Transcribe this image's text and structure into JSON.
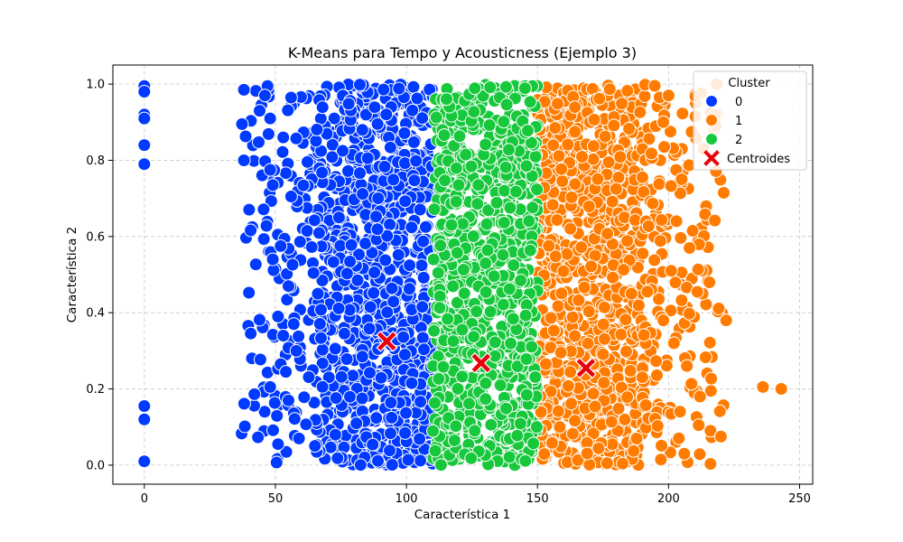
{
  "chart_data": {
    "type": "scatter",
    "title": "K-Means para Tempo y Acousticness (Ejemplo 3)",
    "xlabel": "Característica 1",
    "ylabel": "Característica 2",
    "xlim": [
      -12,
      255
    ],
    "ylim": [
      -0.05,
      1.05
    ],
    "xticks": [
      0,
      50,
      100,
      150,
      200,
      250
    ],
    "yticks": [
      0.0,
      0.2,
      0.4,
      0.6,
      0.8,
      1.0
    ],
    "xtick_labels": [
      "0",
      "50",
      "100",
      "150",
      "200",
      "250"
    ],
    "ytick_labels": [
      "0.0",
      "0.2",
      "0.4",
      "0.6",
      "0.8",
      "1.0"
    ],
    "grid": true,
    "legend": {
      "title": "Cluster",
      "placement": "top-right",
      "entries": [
        {
          "label": "0",
          "color": "#0039ff",
          "marker": "circle"
        },
        {
          "label": "1",
          "color": "#ff7c00",
          "marker": "circle"
        },
        {
          "label": "2",
          "color": "#18c83c",
          "marker": "circle"
        },
        {
          "label": "Centroides",
          "color": "#e8000b",
          "marker": "x"
        }
      ]
    },
    "series": [
      {
        "name": "0",
        "color": "#0039ff",
        "x_range_dense": [
          68,
          110
        ],
        "x_range_sparse": [
          37,
          68
        ],
        "y_range": [
          0,
          1
        ],
        "points": [
          {
            "x": 0,
            "y": 0.995
          },
          {
            "x": 0,
            "y": 0.98
          },
          {
            "x": 0,
            "y": 0.92
          },
          {
            "x": 0,
            "y": 0.91
          },
          {
            "x": 0,
            "y": 0.84
          },
          {
            "x": 0,
            "y": 0.79
          },
          {
            "x": 0,
            "y": 0.155
          },
          {
            "x": 0,
            "y": 0.12
          },
          {
            "x": 0,
            "y": 0.01
          },
          {
            "x": 38,
            "y": 0.8
          },
          {
            "x": 38,
            "y": 0.985
          },
          {
            "x": 47,
            "y": 0.995
          },
          {
            "x": 46,
            "y": 0.97
          },
          {
            "x": 44,
            "y": 0.93
          },
          {
            "x": 48,
            "y": 0.91
          },
          {
            "x": 48,
            "y": 0.775
          },
          {
            "x": 49,
            "y": 0.735
          },
          {
            "x": 49,
            "y": 0.54
          },
          {
            "x": 48,
            "y": 0.205
          },
          {
            "x": 51,
            "y": 0.39
          },
          {
            "x": 51,
            "y": 0.055
          },
          {
            "x": 52,
            "y": 0.265
          },
          {
            "x": 53,
            "y": 0.34
          },
          {
            "x": 55,
            "y": 0.17
          },
          {
            "x": 54,
            "y": 0.245
          },
          {
            "x": 55,
            "y": 0.47
          },
          {
            "x": 57,
            "y": 0.37
          },
          {
            "x": 56,
            "y": 0.705
          },
          {
            "x": 53,
            "y": 0.86
          },
          {
            "x": 52,
            "y": 0.575
          },
          {
            "x": 58,
            "y": 0.3
          },
          {
            "x": 59,
            "y": 0.07
          }
        ]
      },
      {
        "name": "1",
        "color": "#ff7c00",
        "x_range_dense": [
          150,
          190
        ],
        "x_range_sparse": [
          190,
          222
        ],
        "y_range": [
          0,
          1
        ],
        "points": [
          {
            "x": 236,
            "y": 0.205
          },
          {
            "x": 243,
            "y": 0.2
          },
          {
            "x": 216,
            "y": 0.09
          },
          {
            "x": 220,
            "y": 0.075
          },
          {
            "x": 212,
            "y": 0.18
          },
          {
            "x": 213,
            "y": 0.45
          },
          {
            "x": 211,
            "y": 0.455
          },
          {
            "x": 218,
            "y": 0.89
          },
          {
            "x": 208,
            "y": 0.57
          },
          {
            "x": 205,
            "y": 0.75
          },
          {
            "x": 207,
            "y": 0.26
          },
          {
            "x": 206,
            "y": 0.03
          },
          {
            "x": 200,
            "y": 0.97
          },
          {
            "x": 203,
            "y": 0.64
          },
          {
            "x": 201,
            "y": 0.51
          },
          {
            "x": 198,
            "y": 0.38
          }
        ]
      },
      {
        "name": "2",
        "color": "#18c83c",
        "x_range_dense": [
          110,
          150
        ],
        "x_range_sparse": [],
        "y_range": [
          0,
          1
        ],
        "points": []
      }
    ],
    "centroids": [
      {
        "x": 92.5,
        "y": 0.325
      },
      {
        "x": 168.5,
        "y": 0.255
      },
      {
        "x": 128.5,
        "y": 0.268
      }
    ]
  }
}
